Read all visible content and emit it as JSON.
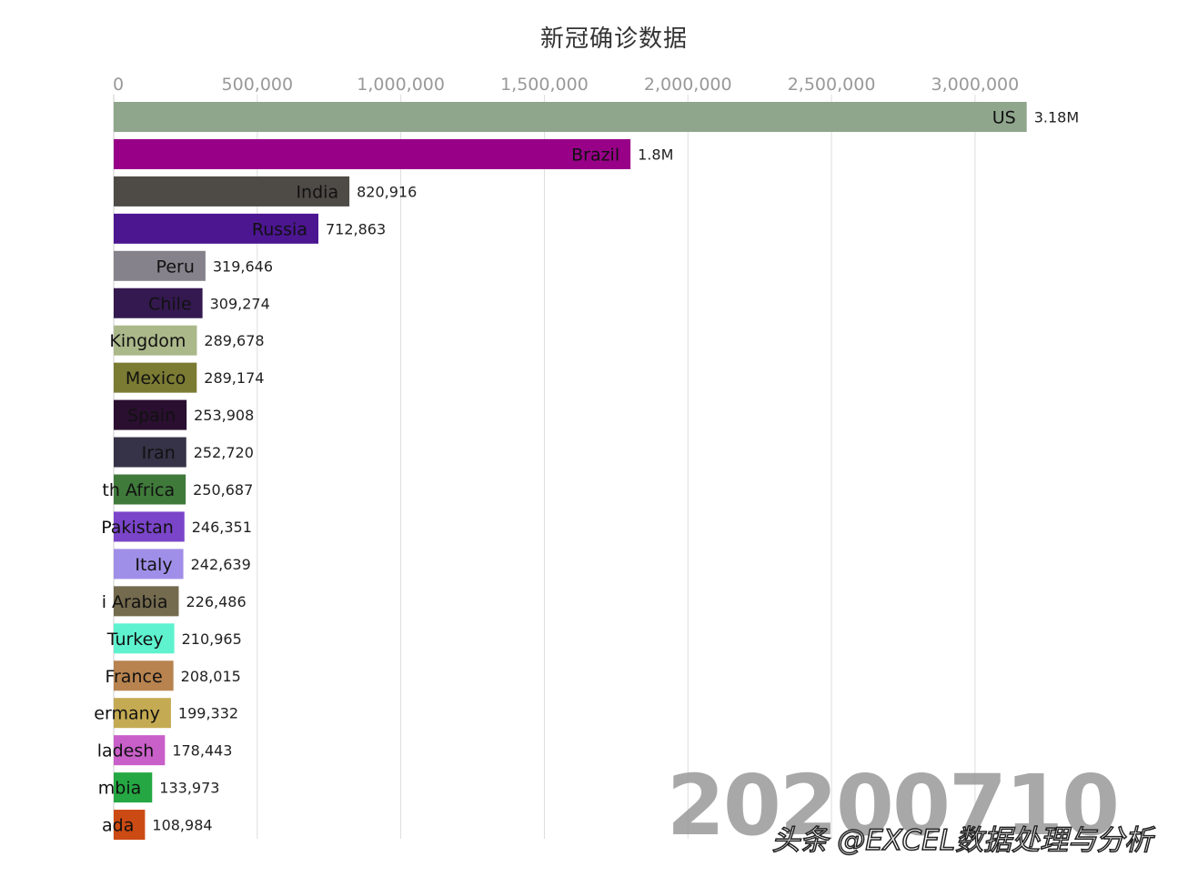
{
  "chart_data": {
    "type": "bar",
    "orientation": "horizontal",
    "title": "新冠确诊数据",
    "date": "20200710",
    "xlim": [
      0,
      3200000
    ],
    "x_ticks": [
      0,
      500000,
      1000000,
      1500000,
      2000000,
      2500000,
      3000000
    ],
    "x_tick_labels": [
      "0",
      "500,000",
      "1,000,000",
      "1,500,000",
      "2,000,000",
      "2,500,000",
      "3,000,000"
    ],
    "grid": true,
    "bars": [
      {
        "label": "US",
        "value": 3180000,
        "value_label": "3.18M",
        "color": "#8fa68c"
      },
      {
        "label": "Brazil",
        "value": 1800000,
        "value_label": "1.8M",
        "color": "#980088"
      },
      {
        "label": "India",
        "value": 820916,
        "value_label": "820,916",
        "color": "#4e4b46"
      },
      {
        "label": "Russia",
        "value": 712863,
        "value_label": "712,863",
        "color": "#4c1691"
      },
      {
        "label": "Peru",
        "value": 319646,
        "value_label": "319,646",
        "color": "#86828b"
      },
      {
        "label": "Chile",
        "value": 309274,
        "value_label": "309,274",
        "color": "#341950"
      },
      {
        "label": "Kingdom",
        "value": 289678,
        "value_label": "289,678",
        "color": "#abb88a"
      },
      {
        "label": "Mexico",
        "value": 289174,
        "value_label": "289,174",
        "color": "#7b7b33"
      },
      {
        "label": "Spain",
        "value": 253908,
        "value_label": "253,908",
        "color": "#2a0f30"
      },
      {
        "label": "Iran",
        "value": 252720,
        "value_label": "252,720",
        "color": "#363247"
      },
      {
        "label": "th Africa",
        "value": 250687,
        "value_label": "250,687",
        "color": "#3f7a3a"
      },
      {
        "label": "Pakistan",
        "value": 246351,
        "value_label": "246,351",
        "color": "#7a45c9"
      },
      {
        "label": "Italy",
        "value": 242639,
        "value_label": "242,639",
        "color": "#a08fe8"
      },
      {
        "label": "i Arabia",
        "value": 226486,
        "value_label": "226,486",
        "color": "#746a4e"
      },
      {
        "label": "Turkey",
        "value": 210965,
        "value_label": "210,965",
        "color": "#5ef2cf"
      },
      {
        "label": "France",
        "value": 208015,
        "value_label": "208,015",
        "color": "#b8834f"
      },
      {
        "label": "ermany",
        "value": 199332,
        "value_label": "199,332",
        "color": "#c4aa52"
      },
      {
        "label": "ladesh",
        "value": 178443,
        "value_label": "178,443",
        "color": "#c95fc9"
      },
      {
        "label": "mbia",
        "value": 133973,
        "value_label": "133,973",
        "color": "#25a843"
      },
      {
        "label": "ada",
        "value": 108984,
        "value_label": "108,984",
        "color": "#cc4a14"
      }
    ]
  },
  "watermark": {
    "source": "头条 @EXCEL数据处理与分析"
  }
}
